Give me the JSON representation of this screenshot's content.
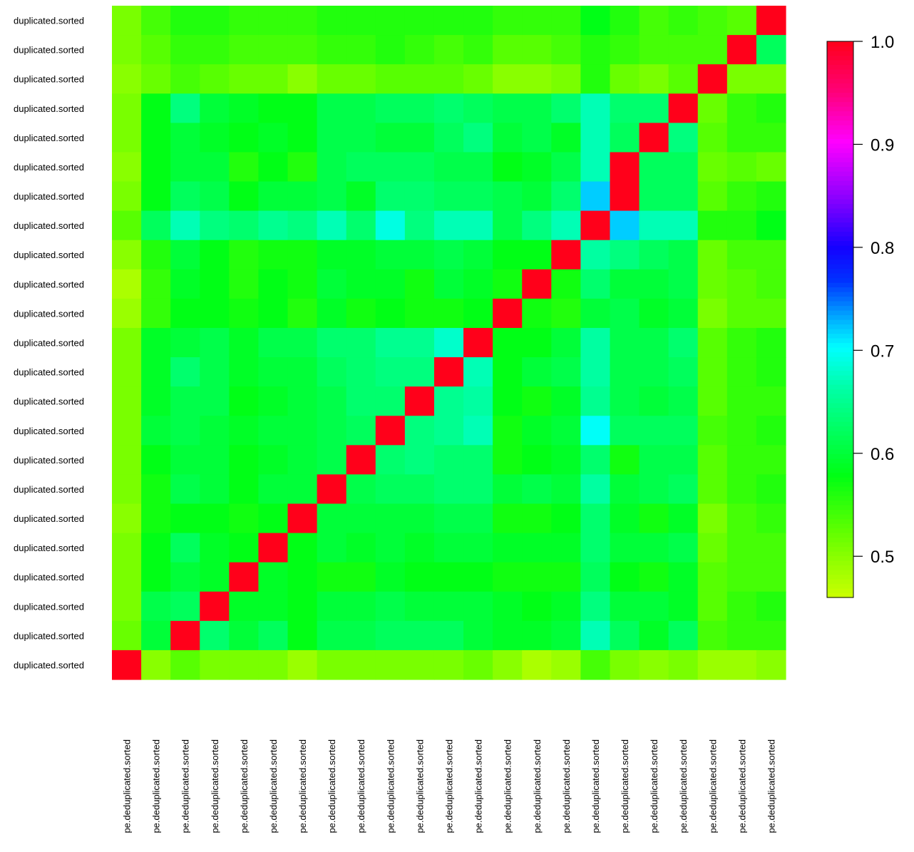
{
  "chart_data": {
    "type": "heatmap",
    "title": "",
    "xlabel": "",
    "ylabel": "",
    "n": 23,
    "row_labels": [
      "duplicated.sorted",
      "duplicated.sorted",
      "duplicated.sorted",
      "duplicated.sorted",
      "duplicated.sorted",
      "duplicated.sorted",
      "duplicated.sorted",
      "duplicated.sorted",
      "duplicated.sorted",
      "duplicated.sorted",
      "duplicated.sorted",
      "duplicated.sorted",
      "duplicated.sorted",
      "duplicated.sorted",
      "duplicated.sorted",
      "duplicated.sorted",
      "duplicated.sorted",
      "duplicated.sorted",
      "duplicated.sorted",
      "duplicated.sorted",
      "duplicated.sorted",
      "duplicated.sorted",
      "duplicated.sorted"
    ],
    "col_labels": [
      "pe.deduplicated.sorted",
      "pe.deduplicated.sorted",
      "pe.deduplicated.sorted",
      "pe.deduplicated.sorted",
      "pe.deduplicated.sorted",
      "pe.deduplicated.sorted",
      "pe.deduplicated.sorted",
      "pe.deduplicated.sorted",
      "pe.deduplicated.sorted",
      "pe.deduplicated.sorted",
      "pe.deduplicated.sorted",
      "pe.deduplicated.sorted",
      "pe.deduplicated.sorted",
      "pe.deduplicated.sorted",
      "pe.deduplicated.sorted",
      "pe.deduplicated.sorted",
      "pe.deduplicated.sorted",
      "pe.deduplicated.sorted",
      "pe.deduplicated.sorted",
      "pe.deduplicated.sorted",
      "pe.deduplicated.sorted",
      "pe.deduplicated.sorted",
      "pe.deduplicated.sorted"
    ],
    "value_range": [
      0.46,
      1.0
    ],
    "colorbar_ticks": [
      "0.5",
      "0.6",
      "0.7",
      "0.8",
      "0.9",
      "1.0"
    ],
    "colorbar_tick_values": [
      0.5,
      0.6,
      0.7,
      0.8,
      0.9,
      1.0
    ],
    "colorbar_placement": "right",
    "values": [
      [
        0.51,
        0.54,
        0.56,
        0.56,
        0.55,
        0.55,
        0.55,
        0.56,
        0.56,
        0.56,
        0.56,
        0.56,
        0.56,
        0.55,
        0.55,
        0.55,
        0.58,
        0.56,
        0.54,
        0.55,
        0.54,
        0.53,
        1.0
      ],
      [
        0.51,
        0.53,
        0.55,
        0.55,
        0.54,
        0.54,
        0.54,
        0.55,
        0.55,
        0.56,
        0.55,
        0.54,
        0.55,
        0.53,
        0.53,
        0.54,
        0.56,
        0.55,
        0.54,
        0.54,
        0.54,
        1.0,
        0.62
      ],
      [
        0.5,
        0.52,
        0.54,
        0.53,
        0.52,
        0.52,
        0.5,
        0.52,
        0.52,
        0.53,
        0.53,
        0.53,
        0.52,
        0.5,
        0.5,
        0.51,
        0.56,
        0.52,
        0.51,
        0.53,
        1.0,
        0.51,
        0.51
      ],
      [
        0.51,
        0.58,
        0.64,
        0.6,
        0.59,
        0.58,
        0.58,
        0.61,
        0.61,
        0.62,
        0.62,
        0.63,
        0.62,
        0.61,
        0.61,
        0.63,
        0.67,
        0.63,
        0.63,
        1.0,
        0.52,
        0.55,
        0.56
      ],
      [
        0.51,
        0.58,
        0.6,
        0.59,
        0.58,
        0.59,
        0.58,
        0.61,
        0.61,
        0.6,
        0.6,
        0.62,
        0.64,
        0.6,
        0.61,
        0.59,
        0.67,
        0.62,
        1.0,
        0.64,
        0.53,
        0.55,
        0.55
      ],
      [
        0.5,
        0.58,
        0.6,
        0.6,
        0.56,
        0.58,
        0.56,
        0.61,
        0.62,
        0.62,
        0.62,
        0.61,
        0.61,
        0.58,
        0.59,
        0.61,
        0.67,
        1.0,
        0.62,
        0.62,
        0.52,
        0.53,
        0.52
      ],
      [
        0.51,
        0.58,
        0.62,
        0.61,
        0.58,
        0.6,
        0.6,
        0.61,
        0.59,
        0.63,
        0.63,
        0.62,
        0.62,
        0.61,
        0.6,
        0.63,
        0.72,
        1.0,
        0.62,
        0.62,
        0.53,
        0.55,
        0.56
      ],
      [
        0.53,
        0.62,
        0.67,
        0.64,
        0.63,
        0.65,
        0.64,
        0.67,
        0.63,
        0.69,
        0.64,
        0.67,
        0.67,
        0.61,
        0.64,
        0.67,
        1.0,
        0.72,
        0.67,
        0.67,
        0.56,
        0.56,
        0.58
      ],
      [
        0.5,
        0.56,
        0.6,
        0.58,
        0.56,
        0.57,
        0.57,
        0.59,
        0.59,
        0.6,
        0.6,
        0.61,
        0.6,
        0.58,
        0.58,
        1.0,
        0.66,
        0.64,
        0.62,
        0.61,
        0.52,
        0.54,
        0.54
      ],
      [
        0.48,
        0.55,
        0.59,
        0.58,
        0.56,
        0.58,
        0.57,
        0.6,
        0.59,
        0.59,
        0.57,
        0.6,
        0.59,
        0.57,
        1.0,
        0.57,
        0.63,
        0.6,
        0.6,
        0.61,
        0.52,
        0.53,
        0.54
      ],
      [
        0.49,
        0.55,
        0.58,
        0.58,
        0.57,
        0.58,
        0.56,
        0.59,
        0.57,
        0.58,
        0.57,
        0.57,
        0.58,
        1.0,
        0.57,
        0.56,
        0.6,
        0.61,
        0.59,
        0.6,
        0.51,
        0.53,
        0.53
      ],
      [
        0.51,
        0.59,
        0.6,
        0.61,
        0.59,
        0.61,
        0.61,
        0.63,
        0.63,
        0.65,
        0.65,
        0.68,
        1.0,
        0.58,
        0.58,
        0.6,
        0.66,
        0.61,
        0.61,
        0.63,
        0.53,
        0.55,
        0.56
      ],
      [
        0.51,
        0.59,
        0.63,
        0.61,
        0.59,
        0.6,
        0.6,
        0.62,
        0.63,
        0.64,
        0.64,
        1.0,
        0.67,
        0.58,
        0.6,
        0.61,
        0.66,
        0.61,
        0.61,
        0.62,
        0.53,
        0.55,
        0.56
      ],
      [
        0.51,
        0.59,
        0.61,
        0.61,
        0.58,
        0.59,
        0.6,
        0.61,
        0.63,
        0.63,
        1.0,
        0.65,
        0.66,
        0.58,
        0.57,
        0.59,
        0.65,
        0.61,
        0.6,
        0.61,
        0.53,
        0.55,
        0.55
      ],
      [
        0.51,
        0.6,
        0.61,
        0.6,
        0.59,
        0.6,
        0.6,
        0.61,
        0.62,
        1.0,
        0.64,
        0.65,
        0.67,
        0.57,
        0.59,
        0.6,
        0.7,
        0.62,
        0.62,
        0.62,
        0.54,
        0.55,
        0.56
      ],
      [
        0.51,
        0.58,
        0.6,
        0.6,
        0.58,
        0.59,
        0.6,
        0.61,
        1.0,
        0.63,
        0.64,
        0.63,
        0.63,
        0.57,
        0.58,
        0.59,
        0.63,
        0.57,
        0.61,
        0.61,
        0.53,
        0.55,
        0.55
      ],
      [
        0.51,
        0.57,
        0.61,
        0.6,
        0.58,
        0.6,
        0.6,
        1.0,
        0.61,
        0.62,
        0.62,
        0.63,
        0.63,
        0.6,
        0.61,
        0.6,
        0.66,
        0.6,
        0.61,
        0.62,
        0.53,
        0.55,
        0.56
      ],
      [
        0.5,
        0.57,
        0.58,
        0.58,
        0.57,
        0.58,
        1.0,
        0.6,
        0.6,
        0.6,
        0.6,
        0.61,
        0.61,
        0.57,
        0.57,
        0.58,
        0.63,
        0.59,
        0.57,
        0.59,
        0.51,
        0.54,
        0.55
      ],
      [
        0.51,
        0.58,
        0.62,
        0.59,
        0.58,
        1.0,
        0.58,
        0.6,
        0.59,
        0.6,
        0.59,
        0.6,
        0.6,
        0.59,
        0.59,
        0.59,
        0.63,
        0.6,
        0.6,
        0.61,
        0.52,
        0.54,
        0.54
      ],
      [
        0.51,
        0.58,
        0.6,
        0.59,
        1.0,
        0.59,
        0.58,
        0.57,
        0.57,
        0.59,
        0.58,
        0.58,
        0.58,
        0.57,
        0.57,
        0.57,
        0.62,
        0.58,
        0.57,
        0.59,
        0.53,
        0.54,
        0.54
      ],
      [
        0.51,
        0.61,
        0.62,
        1.0,
        0.59,
        0.59,
        0.58,
        0.6,
        0.6,
        0.61,
        0.6,
        0.6,
        0.6,
        0.59,
        0.58,
        0.59,
        0.64,
        0.6,
        0.6,
        0.59,
        0.53,
        0.55,
        0.56
      ],
      [
        0.52,
        0.6,
        1.0,
        0.63,
        0.6,
        0.62,
        0.58,
        0.61,
        0.61,
        0.62,
        0.62,
        0.62,
        0.6,
        0.59,
        0.59,
        0.6,
        0.67,
        0.62,
        0.59,
        0.62,
        0.54,
        0.55,
        0.55
      ],
      [
        1.0,
        0.5,
        0.53,
        0.51,
        0.51,
        0.51,
        0.49,
        0.51,
        0.51,
        0.51,
        0.51,
        0.51,
        0.52,
        0.5,
        0.48,
        0.49,
        0.54,
        0.51,
        0.5,
        0.51,
        0.49,
        0.49,
        0.5
      ]
    ]
  }
}
